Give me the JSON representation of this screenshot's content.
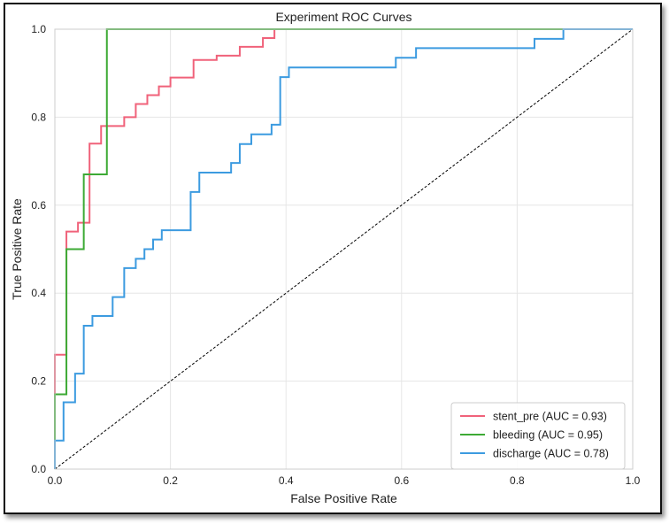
{
  "chart_data": {
    "type": "line",
    "title": "Experiment ROC Curves",
    "xlabel": "False Positive Rate",
    "ylabel": "True Positive Rate",
    "xlim": [
      0.0,
      1.0
    ],
    "ylim": [
      0.0,
      1.0
    ],
    "grid": true,
    "legend_position": "bottom-right",
    "x_ticks": [
      0.0,
      0.2,
      0.4,
      0.6,
      0.8,
      1.0
    ],
    "y_ticks": [
      0.0,
      0.2,
      0.4,
      0.6,
      0.8,
      1.0
    ],
    "x_tick_labels": [
      "0.0",
      "0.2",
      "0.4",
      "0.6",
      "0.8",
      "1.0"
    ],
    "y_tick_labels": [
      "0.0",
      "0.2",
      "0.4",
      "0.6",
      "0.8",
      "1.0"
    ],
    "diagonal": {
      "x": [
        0,
        1
      ],
      "y": [
        0,
        1
      ],
      "style": "dashed",
      "color": "#000000"
    },
    "series": [
      {
        "name": "stent_pre",
        "legend_label": "stent_pre (AUC = 0.93)",
        "auc": 0.93,
        "color": "#F0627A",
        "x": [
          0.0,
          0.0,
          0.02,
          0.02,
          0.04,
          0.04,
          0.06,
          0.06,
          0.08,
          0.08,
          0.1,
          0.1,
          0.12,
          0.12,
          0.14,
          0.14,
          0.16,
          0.16,
          0.18,
          0.18,
          0.2,
          0.2,
          0.24,
          0.24,
          0.28,
          0.28,
          0.32,
          0.32,
          0.36,
          0.36,
          0.38,
          0.38,
          0.4,
          0.5,
          0.6,
          0.7,
          0.8,
          0.9,
          1.0
        ],
        "y": [
          0.0,
          0.26,
          0.26,
          0.54,
          0.54,
          0.56,
          0.56,
          0.74,
          0.74,
          0.78,
          0.78,
          0.78,
          0.78,
          0.8,
          0.8,
          0.83,
          0.83,
          0.85,
          0.85,
          0.87,
          0.87,
          0.89,
          0.89,
          0.93,
          0.93,
          0.94,
          0.94,
          0.96,
          0.96,
          0.98,
          0.98,
          1.0,
          1.0,
          1.0,
          1.0,
          1.0,
          1.0,
          1.0,
          1.0
        ]
      },
      {
        "name": "bleeding",
        "legend_label": "bleeding (AUC = 0.95)",
        "auc": 0.95,
        "color": "#3DAA35",
        "x": [
          0.0,
          0.0,
          0.02,
          0.02,
          0.05,
          0.05,
          0.09,
          0.09,
          0.88,
          1.0
        ],
        "y": [
          0.0,
          0.17,
          0.17,
          0.5,
          0.5,
          0.67,
          0.67,
          1.0,
          1.0,
          1.0
        ]
      },
      {
        "name": "discharge",
        "legend_label": "discharge (AUC = 0.78)",
        "auc": 0.78,
        "color": "#3C9BE0",
        "x": [
          0.0,
          0.0,
          0.015,
          0.015,
          0.035,
          0.035,
          0.05,
          0.05,
          0.065,
          0.065,
          0.1,
          0.1,
          0.12,
          0.12,
          0.14,
          0.14,
          0.155,
          0.155,
          0.17,
          0.17,
          0.185,
          0.185,
          0.235,
          0.235,
          0.25,
          0.25,
          0.305,
          0.305,
          0.32,
          0.32,
          0.34,
          0.34,
          0.375,
          0.375,
          0.39,
          0.39,
          0.405,
          0.405,
          0.59,
          0.59,
          0.625,
          0.625,
          0.83,
          0.83,
          0.88,
          0.88,
          1.0
        ],
        "y": [
          0.0,
          0.065,
          0.065,
          0.152,
          0.152,
          0.217,
          0.217,
          0.326,
          0.326,
          0.348,
          0.348,
          0.391,
          0.391,
          0.457,
          0.457,
          0.478,
          0.478,
          0.5,
          0.5,
          0.522,
          0.522,
          0.543,
          0.543,
          0.63,
          0.63,
          0.674,
          0.674,
          0.696,
          0.696,
          0.739,
          0.739,
          0.761,
          0.761,
          0.783,
          0.783,
          0.891,
          0.891,
          0.913,
          0.913,
          0.935,
          0.935,
          0.957,
          0.957,
          0.978,
          0.978,
          1.0,
          1.0
        ]
      }
    ]
  }
}
